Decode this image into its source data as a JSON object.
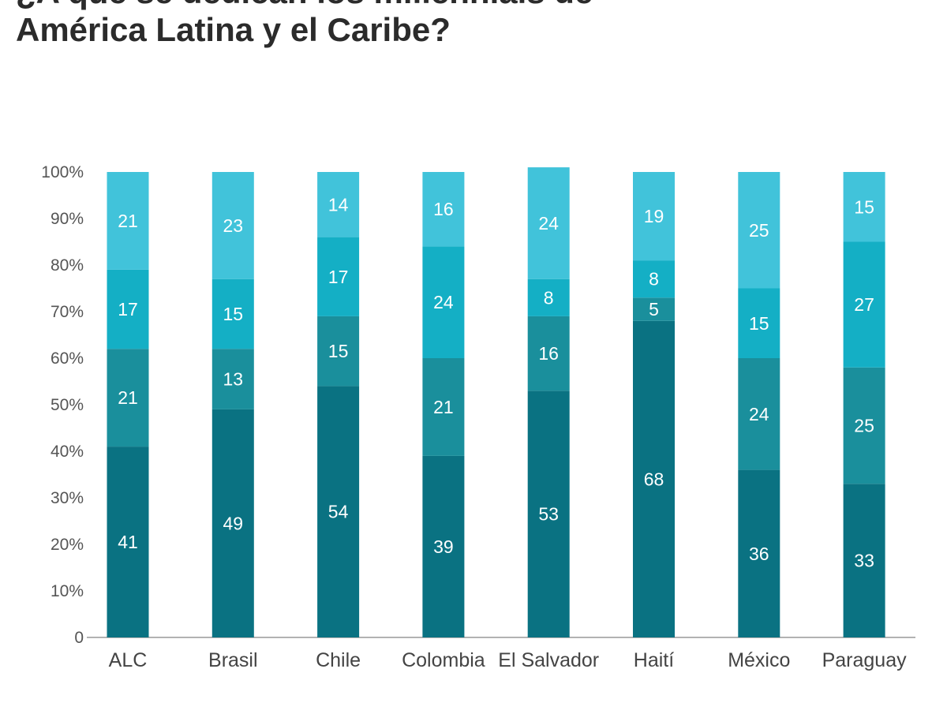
{
  "title_lines": [
    "¿A qué se dedican los millennials de",
    "América Latina y el Caribe?"
  ],
  "colors": {
    "segment_1": "#0a7282",
    "segment_2": "#1a8f9c",
    "segment_3": "#14afc5",
    "segment_4": "#41c3da",
    "axis": "#999999",
    "label": "#ffffff"
  },
  "chart_data": {
    "type": "bar",
    "stacked": true,
    "title": "¿A qué se dedican los millennials de América Latina y el Caribe?",
    "xlabel": "",
    "ylabel": "",
    "ylim": [
      0,
      100
    ],
    "grid": false,
    "legend": "none",
    "y_ticks": [
      "0",
      "10%",
      "20%",
      "30%",
      "40%",
      "50%",
      "60%",
      "70%",
      "80%",
      "90%",
      "100%"
    ],
    "categories": [
      "ALC",
      "Brasil",
      "Chile",
      "Colombia",
      "El Salvador",
      "Haití",
      "México",
      "Paraguay"
    ],
    "series": [
      {
        "values": [
          41,
          49,
          54,
          39,
          53,
          68,
          36,
          33
        ]
      },
      {
        "values": [
          21,
          13,
          15,
          21,
          16,
          5,
          24,
          25
        ]
      },
      {
        "values": [
          17,
          15,
          17,
          24,
          8,
          8,
          15,
          27
        ]
      },
      {
        "values": [
          21,
          23,
          14,
          16,
          24,
          19,
          25,
          15
        ]
      }
    ]
  }
}
